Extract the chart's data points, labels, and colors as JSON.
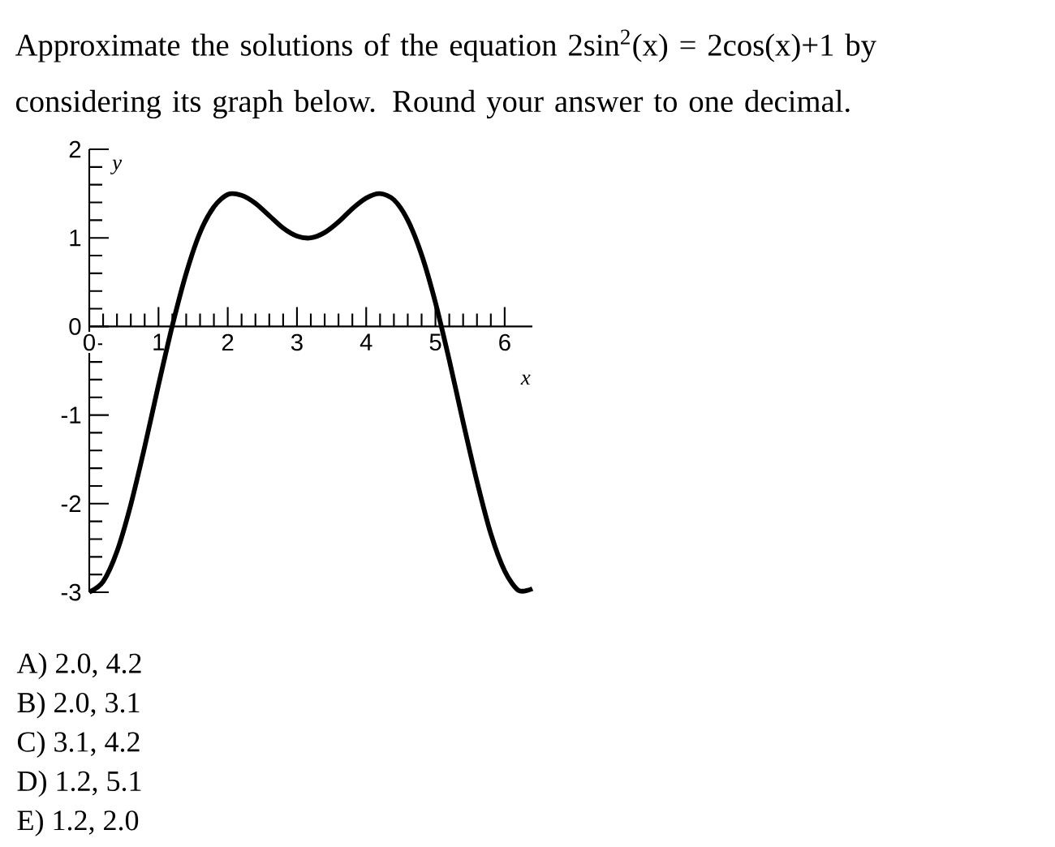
{
  "chart_data": {
    "type": "line",
    "title": "Approximate the solutions of the equation 2sin$^{2}$(x) = 2cos(x)+1 by considering its graph below. Round your answer to one decimal.",
    "xlabel": "x",
    "ylabel": "y",
    "x": [
      0,
      0.2,
      0.4,
      0.6,
      0.8,
      1.0,
      1.2,
      1.4,
      1.6,
      1.8,
      2.0,
      2.2,
      2.4,
      2.6,
      2.8,
      3.0,
      3.2,
      3.4,
      3.6,
      3.8,
      4.0,
      4.2,
      4.4,
      4.6,
      4.8,
      5.0,
      5.2,
      5.4,
      5.6,
      5.8,
      6.0,
      6.2,
      6.4
    ],
    "values": [
      -3,
      -2.88,
      -2.54,
      -2.01,
      -1.36,
      -0.66,
      0.01,
      0.6,
      1.06,
      1.35,
      1.49,
      1.48,
      1.39,
      1.25,
      1.11,
      1.02,
      1.0,
      1.06,
      1.18,
      1.33,
      1.45,
      1.5,
      1.43,
      1.2,
      0.81,
      0.27,
      -0.38,
      -1.08,
      -1.75,
      -2.34,
      -2.76,
      -2.98,
      -2.96
    ],
    "color": "#000000",
    "line_style": "solid",
    "xlim": [
      0,
      6.4
    ],
    "ylim": [
      -3,
      2
    ],
    "xticks": [
      0,
      1,
      2,
      3,
      4,
      5,
      6
    ],
    "yticks": [
      -3,
      -2,
      -1,
      0,
      1,
      2
    ],
    "annotations": [
      "A)  2.0, 4.2",
      "B)  2.0, 3.1",
      "C)  3.1, 4.2",
      "D)  1.2, 5.1",
      "E)  1.2, 2.0"
    ]
  }
}
